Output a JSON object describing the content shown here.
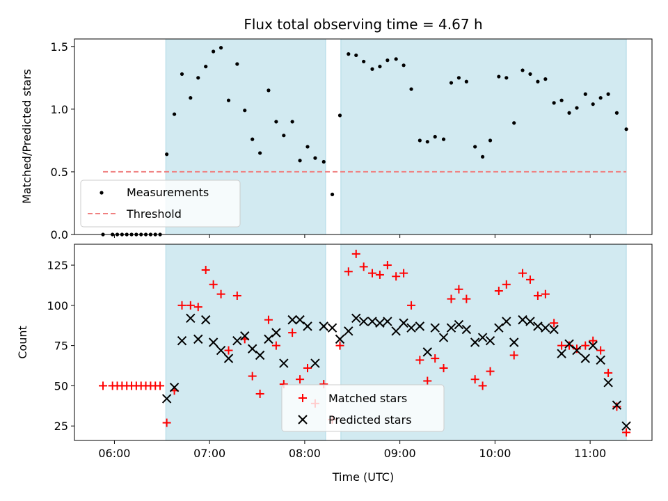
{
  "chart_data": {
    "title": "Flux total observing time = 4.67 h",
    "xlabel": "Time (UTC)",
    "x_ticks": [
      "06:00",
      "07:00",
      "08:00",
      "09:00",
      "10:00",
      "11:00"
    ],
    "x_tick_values_hours": [
      6,
      7,
      8,
      9,
      10,
      11
    ],
    "xlim_hours": [
      5.58,
      11.65
    ],
    "shaded_intervals_hours": [
      [
        6.54,
        8.22
      ],
      [
        8.38,
        11.38
      ]
    ],
    "shade_color": "#add8e6",
    "panels": [
      {
        "type": "scatter",
        "ylabel": "Matched/Predicted stars",
        "ylim": [
          0,
          1.56
        ],
        "y_ticks": [
          0.0,
          0.5,
          1.0,
          1.5
        ],
        "y_tick_labels": [
          "0.0",
          "0.5",
          "1.0",
          "1.5"
        ],
        "legend_position": "lower-left",
        "threshold": {
          "name": "Threshold",
          "value": 0.5,
          "x_range_hours": [
            5.88,
            11.38
          ],
          "color": "#f08080"
        },
        "series": [
          {
            "name": "Measurements",
            "marker": "dot",
            "color": "#000000",
            "x": [
              5.88,
              5.98,
              6.03,
              6.08,
              6.13,
              6.18,
              6.23,
              6.28,
              6.33,
              6.38,
              6.43,
              6.48,
              6.55,
              6.63,
              6.71,
              6.8,
              6.88,
              6.96,
              7.04,
              7.12,
              7.2,
              7.29,
              7.37,
              7.45,
              7.53,
              7.62,
              7.7,
              7.78,
              7.87,
              7.95,
              8.03,
              8.11,
              8.2,
              8.29,
              8.37,
              8.46,
              8.54,
              8.62,
              8.71,
              8.79,
              8.87,
              8.96,
              9.04,
              9.12,
              9.21,
              9.29,
              9.37,
              9.46,
              9.54,
              9.62,
              9.7,
              9.79,
              9.87,
              9.95,
              10.04,
              10.12,
              10.2,
              10.29,
              10.37,
              10.45,
              10.53,
              10.62,
              10.7,
              10.78,
              10.86,
              10.95,
              11.03,
              11.11,
              11.19,
              11.28,
              11.38
            ],
            "y": [
              0,
              0,
              0,
              0,
              0,
              0,
              0,
              0,
              0,
              0,
              0,
              0,
              0.64,
              0.96,
              1.28,
              1.09,
              1.25,
              1.34,
              1.46,
              1.49,
              1.07,
              1.36,
              0.99,
              0.76,
              0.65,
              1.15,
              0.9,
              0.79,
              0.9,
              0.59,
              0.7,
              0.61,
              0.58,
              0.32,
              0.95,
              1.44,
              1.43,
              1.38,
              1.32,
              1.34,
              1.39,
              1.4,
              1.35,
              1.16,
              0.75,
              0.74,
              0.78,
              0.76,
              1.21,
              1.25,
              1.22,
              0.7,
              0.62,
              0.75,
              1.26,
              1.25,
              0.89,
              1.31,
              1.28,
              1.22,
              1.24,
              1.05,
              1.07,
              0.97,
              1.01,
              1.12,
              1.04,
              1.09,
              1.12,
              0.97,
              0.84
            ]
          }
        ]
      },
      {
        "type": "scatter",
        "ylabel": "Count",
        "ylim": [
          16,
          138
        ],
        "y_ticks": [
          25,
          50,
          75,
          100,
          125
        ],
        "y_tick_labels": [
          "25",
          "50",
          "75",
          "100",
          "125"
        ],
        "legend_position": "lower-center",
        "series": [
          {
            "name": "Matched stars",
            "marker": "plus",
            "color": "#ff0000",
            "x": [
              5.88,
              5.98,
              6.03,
              6.08,
              6.13,
              6.18,
              6.23,
              6.28,
              6.33,
              6.38,
              6.43,
              6.48,
              6.55,
              6.63,
              6.71,
              6.8,
              6.88,
              6.96,
              7.04,
              7.12,
              7.2,
              7.29,
              7.37,
              7.45,
              7.53,
              7.62,
              7.7,
              7.78,
              7.87,
              7.95,
              8.03,
              8.11,
              8.2,
              8.29,
              8.37,
              8.46,
              8.54,
              8.62,
              8.71,
              8.79,
              8.87,
              8.96,
              9.04,
              9.12,
              9.21,
              9.29,
              9.37,
              9.46,
              9.54,
              9.62,
              9.7,
              9.79,
              9.87,
              9.95,
              10.04,
              10.12,
              10.2,
              10.29,
              10.37,
              10.45,
              10.53,
              10.62,
              10.7,
              10.78,
              10.86,
              10.95,
              11.03,
              11.11,
              11.19,
              11.28,
              11.38
            ],
            "y": [
              50,
              50,
              50,
              50,
              50,
              50,
              50,
              50,
              50,
              50,
              50,
              50,
              27,
              47,
              100,
              100,
              99,
              122,
              113,
              107,
              72,
              106,
              79,
              56,
              45,
              91,
              75,
              51,
              83,
              54,
              61,
              39,
              51,
              29,
              75,
              121,
              132,
              124,
              120,
              119,
              125,
              118,
              120,
              100,
              66,
              53,
              67,
              61,
              104,
              110,
              104,
              54,
              50,
              59,
              109,
              113,
              69,
              120,
              116,
              106,
              107,
              89,
              75,
              75,
              73,
              75,
              78,
              72,
              58,
              37,
              21
            ]
          },
          {
            "name": "Predicted stars",
            "marker": "x",
            "color": "#000000",
            "x": [
              6.55,
              6.63,
              6.71,
              6.8,
              6.88,
              6.96,
              7.04,
              7.12,
              7.2,
              7.29,
              7.37,
              7.45,
              7.53,
              7.62,
              7.7,
              7.78,
              7.87,
              7.95,
              8.03,
              8.11,
              8.2,
              8.29,
              8.37,
              8.46,
              8.54,
              8.62,
              8.71,
              8.79,
              8.87,
              8.96,
              9.04,
              9.12,
              9.21,
              9.29,
              9.37,
              9.46,
              9.54,
              9.62,
              9.7,
              9.79,
              9.87,
              9.95,
              10.04,
              10.12,
              10.2,
              10.29,
              10.37,
              10.45,
              10.53,
              10.62,
              10.7,
              10.78,
              10.86,
              10.95,
              11.03,
              11.11,
              11.19,
              11.28,
              11.38
            ],
            "y": [
              42,
              49,
              78,
              92,
              79,
              91,
              77,
              72,
              67,
              78,
              81,
              73,
              69,
              79,
              83,
              64,
              91,
              91,
              87,
              64,
              87,
              86,
              79,
              84,
              92,
              90,
              90,
              89,
              90,
              84,
              89,
              86,
              87,
              71,
              86,
              80,
              86,
              88,
              85,
              77,
              80,
              78,
              86,
              90,
              77,
              91,
              90,
              87,
              86,
              85,
              70,
              76,
              72,
              67,
              75,
              66,
              52,
              38,
              25
            ]
          }
        ]
      }
    ]
  }
}
